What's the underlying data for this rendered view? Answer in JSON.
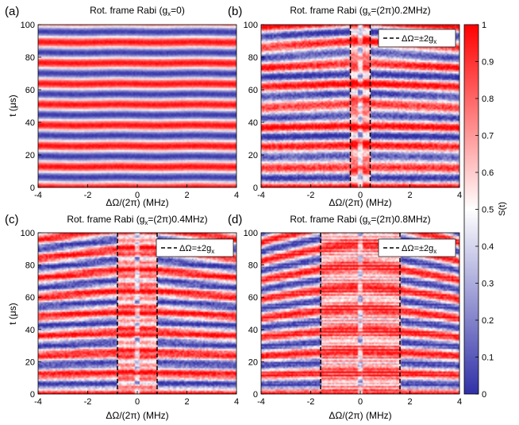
{
  "chart_data": {
    "type": "heatmap",
    "colormap": {
      "low_color": "#3030a8",
      "mid_color": "#ffffff",
      "high_color": "#ff0000",
      "range": [
        0,
        1
      ],
      "ticks": [
        "0",
        "0.1",
        "0.2",
        "0.3",
        "0.4",
        "0.5",
        "0.6",
        "0.7",
        "0.8",
        "0.9",
        "1"
      ],
      "label": "S(t)"
    },
    "shared_axes": {
      "xlabel": "ΔΩ/(2π) (MHz)",
      "ylabel": "t (μs)",
      "xlim": [
        -4,
        4
      ],
      "ylim": [
        0,
        100
      ],
      "xticks": [
        "-4",
        "-2",
        "0",
        "2",
        "4"
      ],
      "yticks": [
        "0",
        "20",
        "40",
        "60",
        "80",
        "100"
      ]
    },
    "panels": [
      {
        "label": "(a)",
        "title_parts": [
          "Rot. frame Rabi (g",
          "x",
          "=0)"
        ],
        "g_x_MHz": 0,
        "legend": null
      },
      {
        "label": "(b)",
        "title_parts": [
          "Rot. frame Rabi (g",
          "x",
          "=(2π)0.2MHz)"
        ],
        "g_x_MHz": 0.2,
        "legend": {
          "text_parts": [
            "ΔΩ=±2g",
            "x"
          ],
          "line_x_MHz": [
            -0.4,
            0.4
          ]
        }
      },
      {
        "label": "(c)",
        "title_parts": [
          "Rot. frame Rabi (g",
          "x",
          "=(2π)0.4MHz)"
        ],
        "g_x_MHz": 0.4,
        "legend": {
          "text_parts": [
            "ΔΩ=±2g",
            "x"
          ],
          "line_x_MHz": [
            -0.8,
            0.8
          ]
        }
      },
      {
        "label": "(d)",
        "title_parts": [
          "Rot. frame Rabi (g",
          "x",
          "=(2π)0.8MHz)"
        ],
        "g_x_MHz": 0.8,
        "legend": {
          "text_parts": [
            "ΔΩ=±2g",
            "x"
          ],
          "line_x_MHz": [
            -1.6,
            1.6
          ]
        }
      }
    ]
  }
}
